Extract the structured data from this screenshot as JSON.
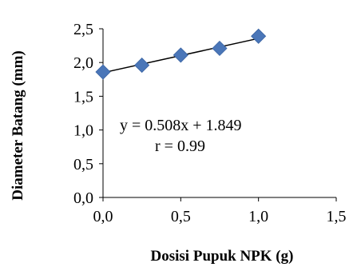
{
  "chart_data": {
    "type": "scatter",
    "xlabel": "Dosisi Pupuk NPK (g)",
    "ylabel": "Diameter Batang (mm)",
    "xlim": [
      0,
      1.5
    ],
    "ylim": [
      0,
      2.5
    ],
    "x_ticks": [
      "0,0",
      "0,5",
      "1,0",
      "1,5"
    ],
    "y_ticks": [
      "0,0",
      "0,5",
      "1,0",
      "1,5",
      "2,0",
      "2,5"
    ],
    "x_tick_values": [
      0,
      0.5,
      1.0,
      1.5
    ],
    "y_tick_values": [
      0,
      0.5,
      1.0,
      1.5,
      2.0,
      2.5
    ],
    "grid": false,
    "marker_color": "#4a76b8",
    "trend_color": "#000000",
    "series": [
      {
        "marker": "diamond",
        "x": [
          0,
          0.25,
          0.5,
          0.75,
          1.0
        ],
        "y": [
          1.86,
          1.96,
          2.11,
          2.21,
          2.39
        ]
      }
    ],
    "trendline": {
      "slope": 0.508,
      "intercept": 1.849,
      "x_range": [
        0,
        1.0
      ]
    },
    "annotations": {
      "equation": "y = 0.508x + 1.849",
      "r_value": "r = 0.99"
    }
  }
}
